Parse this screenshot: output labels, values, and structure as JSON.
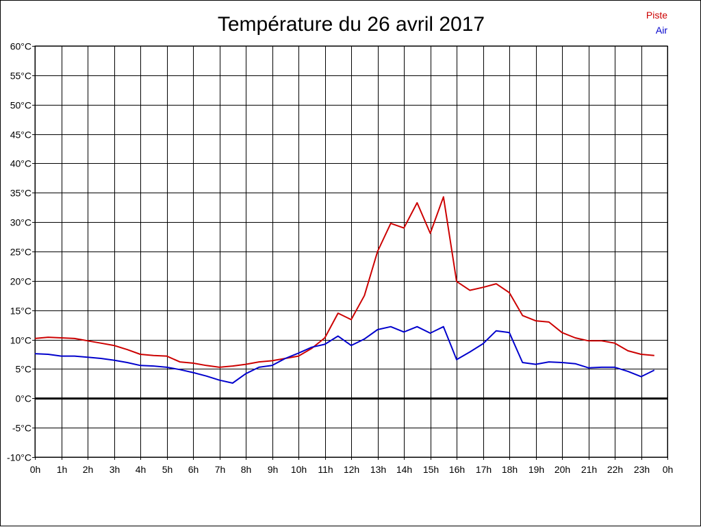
{
  "chart_data": {
    "type": "line",
    "title": "Température du 26 avril 2017",
    "xlabel": "",
    "ylabel": "",
    "ylim": [
      -10,
      60
    ],
    "y_ticks": [
      -10,
      -5,
      0,
      5,
      10,
      15,
      20,
      25,
      30,
      35,
      40,
      45,
      50,
      55,
      60
    ],
    "y_tick_labels": [
      "-10°C",
      "-5°C",
      "0°C",
      "5°C",
      "10°C",
      "15°C",
      "20°C",
      "25°C",
      "30°C",
      "35°C",
      "40°C",
      "45°C",
      "50°C",
      "55°C",
      "60°C"
    ],
    "xlim": [
      0,
      24
    ],
    "x_ticks": [
      0,
      1,
      2,
      3,
      4,
      5,
      6,
      7,
      8,
      9,
      10,
      11,
      12,
      13,
      14,
      15,
      16,
      17,
      18,
      19,
      20,
      21,
      22,
      23,
      24
    ],
    "x_tick_labels": [
      "0h",
      "1h",
      "2h",
      "3h",
      "4h",
      "5h",
      "6h",
      "7h",
      "8h",
      "9h",
      "10h",
      "11h",
      "12h",
      "13h",
      "14h",
      "15h",
      "16h",
      "17h",
      "18h",
      "19h",
      "20h",
      "21h",
      "22h",
      "23h",
      "0h"
    ],
    "grid": true,
    "legend_position": "top-right",
    "zero_line": true,
    "x": [
      0,
      0.5,
      1,
      1.5,
      2,
      2.5,
      3,
      3.5,
      4,
      4.5,
      5,
      5.5,
      6,
      6.5,
      7,
      7.5,
      8,
      8.5,
      9,
      9.5,
      10,
      10.5,
      11,
      11.5,
      12,
      12.5,
      13,
      13.5,
      14,
      14.5,
      15,
      15.5,
      16,
      16.5,
      17,
      17.5,
      18,
      18.5,
      19,
      19.5,
      20,
      20.5,
      21,
      21.5,
      22,
      22.5,
      23,
      23.5
    ],
    "series": [
      {
        "name": "Piste",
        "color": "#cc0000",
        "values": [
          10.2,
          10.4,
          10.3,
          10.2,
          9.8,
          9.4,
          9.0,
          8.3,
          7.5,
          7.3,
          7.2,
          6.2,
          6.0,
          5.6,
          5.3,
          5.5,
          5.8,
          6.2,
          6.4,
          6.8,
          7.2,
          8.5,
          10.3,
          14.5,
          13.4,
          17.5,
          25.0,
          29.8,
          29.0,
          33.3,
          28.1,
          34.3,
          19.9,
          18.4,
          18.9,
          19.5,
          18.0,
          14.1,
          13.2,
          13.0,
          11.2,
          10.3,
          9.8,
          9.8,
          9.4,
          8.1,
          7.5,
          7.3
        ]
      },
      {
        "name": "Air",
        "color": "#0000cc",
        "values": [
          7.6,
          7.5,
          7.2,
          7.2,
          7.0,
          6.8,
          6.5,
          6.1,
          5.6,
          5.5,
          5.3,
          4.9,
          4.4,
          3.8,
          3.1,
          2.6,
          4.2,
          5.3,
          5.6,
          6.8,
          7.7,
          8.7,
          9.2,
          10.6,
          9.0,
          10.1,
          11.7,
          12.2,
          11.3,
          12.2,
          11.1,
          12.2,
          6.6,
          7.9,
          9.3,
          11.5,
          11.2,
          6.1,
          5.8,
          6.2,
          6.1,
          5.9,
          5.2,
          5.3,
          5.3,
          4.6,
          3.7,
          4.8
        ]
      }
    ]
  }
}
